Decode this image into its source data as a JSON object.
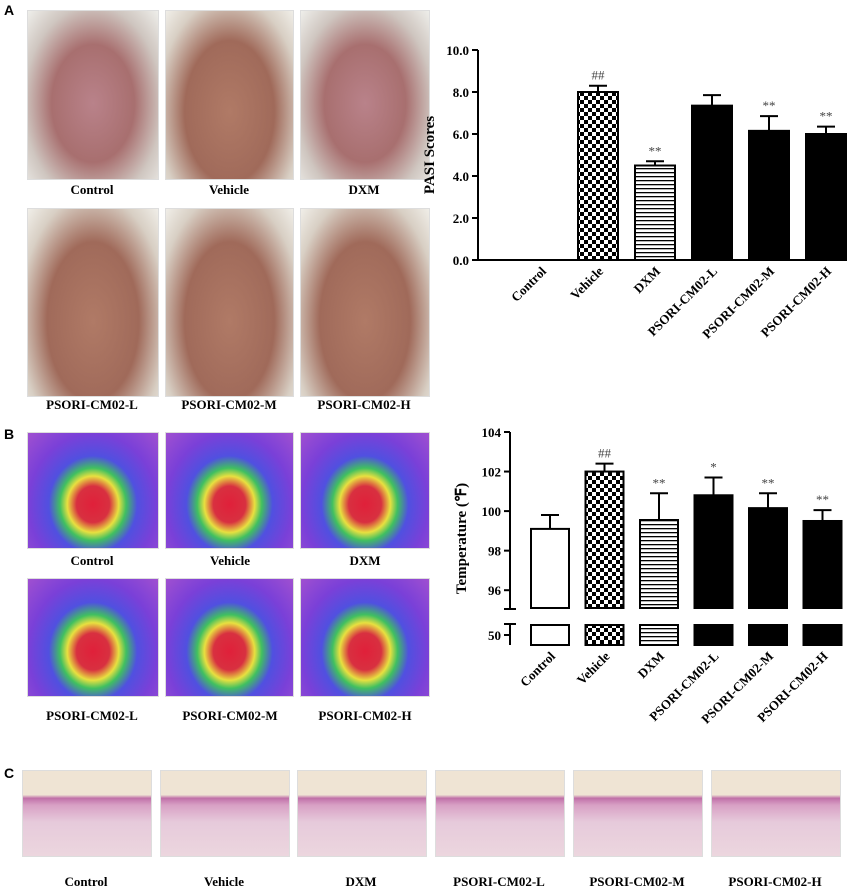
{
  "panel_labels": [
    "A",
    "B",
    "C"
  ],
  "captions": {
    "A": [
      "Control",
      "Vehicle",
      "DXM",
      "PSORI-CM02-L",
      "PSORI-CM02-M",
      "PSORI-CM02-H"
    ],
    "B": [
      "Control",
      "Vehicle",
      "DXM",
      "PSORI-CM02-L",
      "PSORI-CM02-M",
      "PSORI-CM02-H"
    ],
    "C": [
      "Control",
      "Vehicle",
      "DXM",
      "PSORI-CM02-L",
      "PSORI-CM02-M",
      "PSORI-CM02-H"
    ]
  },
  "chart_data": [
    {
      "type": "bar",
      "y_label": "PASI Scores",
      "categories": [
        "Control",
        "Vehicle",
        "DXM",
        "PSORI-CM02-L",
        "PSORI-CM02-M",
        "PSORI-CM02-H"
      ],
      "values": [
        0,
        8.0,
        4.5,
        7.35,
        6.15,
        6.0
      ],
      "errors": [
        null,
        0.3,
        0.2,
        0.5,
        0.7,
        0.35
      ],
      "annotations": [
        null,
        "##",
        "**",
        null,
        "**",
        "**"
      ],
      "bar_styles": [
        "white",
        "checker",
        "hlines",
        "black",
        "black",
        "black"
      ],
      "ylim": [
        0,
        10
      ],
      "yticks": [
        {
          "value": 0,
          "label": "0.0"
        },
        {
          "value": 2,
          "label": "2.0"
        },
        {
          "value": 4,
          "label": "4.0"
        },
        {
          "value": 6,
          "label": "6.0"
        },
        {
          "value": 8,
          "label": "8.0"
        },
        {
          "value": 10,
          "label": "10.0"
        }
      ]
    },
    {
      "type": "broken-bar",
      "y_label": "Temperature (℉)",
      "categories": [
        "Control",
        "Vehicle",
        "DXM",
        "PSORI-CM02-L",
        "PSORI-CM02-M",
        "PSORI-CM02-H"
      ],
      "values": [
        99.1,
        102.0,
        99.55,
        100.8,
        100.15,
        99.5
      ],
      "errors": [
        0.7,
        0.4,
        1.35,
        0.9,
        0.75,
        0.55
      ],
      "annotations": [
        null,
        "##",
        "**",
        "*",
        "**",
        "**"
      ],
      "bar_styles": [
        "white",
        "checker",
        "hlines",
        "black",
        "black",
        "black"
      ],
      "ylim": [
        95.1,
        104
      ],
      "yticks": [
        96,
        98,
        100,
        102,
        104
      ],
      "lower_ylim": [
        49.5,
        50.5
      ],
      "lower_yticks": [
        50
      ]
    }
  ]
}
